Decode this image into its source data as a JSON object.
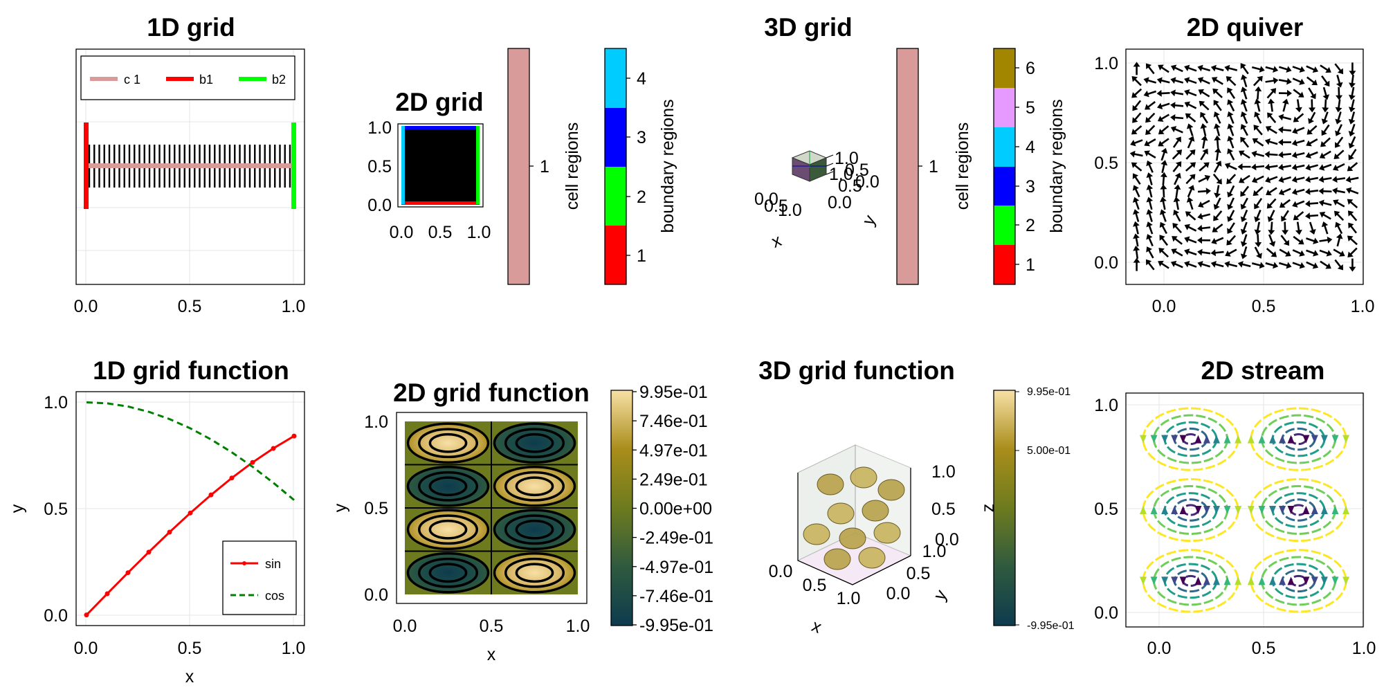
{
  "figure": {
    "background": "#ffffff"
  },
  "chart_data": [
    {
      "type": "line",
      "title": "1D grid",
      "xlabel": "",
      "ylabel": "",
      "xlim": [
        -0.05,
        1.05
      ],
      "xticks": [
        "0.0",
        "0.5",
        "1.0"
      ],
      "grid": true,
      "nodes": 40,
      "legend": {
        "placement": "top",
        "entries": [
          {
            "name": "c 1",
            "color": "#d99a9a"
          },
          {
            "name": "b1",
            "color": "#ff0000"
          },
          {
            "name": "b2",
            "color": "#00ff00"
          }
        ]
      }
    },
    {
      "type": "heatmap",
      "title": "2D grid",
      "xlim": [
        0,
        1
      ],
      "ylim": [
        0,
        1
      ],
      "xticks": [
        "0.0",
        "0.5",
        "1.0"
      ],
      "yticks": [
        "0.0",
        "0.5",
        "1.0"
      ],
      "cell_colorbar": {
        "label": "cell regions",
        "ticks": [
          "1"
        ],
        "colors": [
          "#d99a9a"
        ]
      },
      "boundary_colorbar": {
        "label": "boundary regions",
        "ticks": [
          "1",
          "2",
          "3",
          "4"
        ],
        "colors": [
          "#ff0000",
          "#00ff00",
          "#0000ff",
          "#00ccff"
        ]
      }
    },
    {
      "type": "scatter",
      "title": "3D grid",
      "xlabel": "x",
      "ylabel": "y",
      "axis_ticks": {
        "x": [
          "0.0",
          "0.5",
          "1.0"
        ],
        "y": [
          "0.0",
          "0.5",
          "1.0"
        ],
        "z": [
          "0.0",
          "0.5",
          "1.0"
        ]
      },
      "cell_colorbar": {
        "label": "cell regions",
        "ticks": [
          "1"
        ],
        "colors": [
          "#d99a9a"
        ]
      },
      "boundary_colorbar": {
        "label": "boundary regions",
        "ticks": [
          "1",
          "2",
          "3",
          "4",
          "5",
          "6"
        ],
        "colors": [
          "#ff0000",
          "#00ff00",
          "#0000ff",
          "#00ccff",
          "#e699ff",
          "#a38600"
        ]
      }
    },
    {
      "type": "scatter",
      "title": "2D quiver",
      "xlim": [
        -0.05,
        1.05
      ],
      "ylim": [
        -0.1,
        1.1
      ],
      "xticks": [
        "0.0",
        "0.5",
        "1.0"
      ],
      "yticks": [
        "0.0",
        "0.5",
        "1.0"
      ],
      "grid": true
    },
    {
      "type": "line",
      "title": "1D grid function",
      "xlabel": "x",
      "ylabel": "y",
      "xlim": [
        -0.05,
        1.05
      ],
      "ylim": [
        -0.05,
        1.05
      ],
      "xticks": [
        "0.0",
        "0.5",
        "1.0"
      ],
      "yticks": [
        "0.0",
        "0.5",
        "1.0"
      ],
      "grid": true,
      "x": [
        0,
        0.1,
        0.2,
        0.3,
        0.4,
        0.5,
        0.6,
        0.7,
        0.8,
        0.9,
        1.0
      ],
      "series": [
        {
          "name": "sin",
          "color": "#ff0000",
          "style": "solid-marker",
          "values": [
            0,
            0.0998,
            0.1987,
            0.2955,
            0.3894,
            0.4794,
            0.5646,
            0.6442,
            0.7174,
            0.7833,
            0.8415
          ]
        },
        {
          "name": "cos",
          "color": "#008000",
          "style": "dashed",
          "values": [
            1.0,
            0.995,
            0.9801,
            0.9553,
            0.9211,
            0.8776,
            0.8253,
            0.7648,
            0.6967,
            0.6216,
            0.5403
          ]
        }
      ],
      "legend": {
        "placement": "bottom-right"
      }
    },
    {
      "type": "heatmap",
      "title": "2D grid function",
      "xlabel": "x",
      "ylabel": "y",
      "xlim": [
        -0.05,
        1.05
      ],
      "ylim": [
        -0.05,
        1.05
      ],
      "xticks": [
        "0.0",
        "0.5",
        "1.0"
      ],
      "yticks": [
        "0.0",
        "0.5",
        "1.0"
      ],
      "function": "sin(2*pi*x)*sin(4*pi*y)",
      "colorbar": {
        "ticks": [
          "9.95e-01",
          "7.46e-01",
          "4.97e-01",
          "2.49e-01",
          "0.00e+00",
          "-2.49e-01",
          "-4.97e-01",
          "-7.46e-01",
          "-9.95e-01"
        ],
        "min": -0.995,
        "max": 0.995
      }
    },
    {
      "type": "scatter",
      "title": "3D grid function",
      "xlabel": "x",
      "ylabel": "y",
      "zlabel": "z",
      "axis_ticks": {
        "x": [
          "0.0",
          "0.5",
          "1.0"
        ],
        "y": [
          "0.0",
          "0.5",
          "1.0"
        ],
        "z": [
          "0.0",
          "0.5",
          "1.0"
        ]
      },
      "colorbar": {
        "ticks": [
          "9.95e-01",
          "5.00e-01",
          "-9.95e-01"
        ],
        "min": -0.995,
        "max": 0.995
      }
    },
    {
      "type": "line",
      "title": "2D stream",
      "xlim": [
        -0.05,
        1.05
      ],
      "ylim": [
        -0.05,
        1.05
      ],
      "xticks": [
        "0.0",
        "0.5",
        "1.0"
      ],
      "yticks": [
        "0.0",
        "0.5",
        "1.0"
      ],
      "grid": true
    }
  ]
}
